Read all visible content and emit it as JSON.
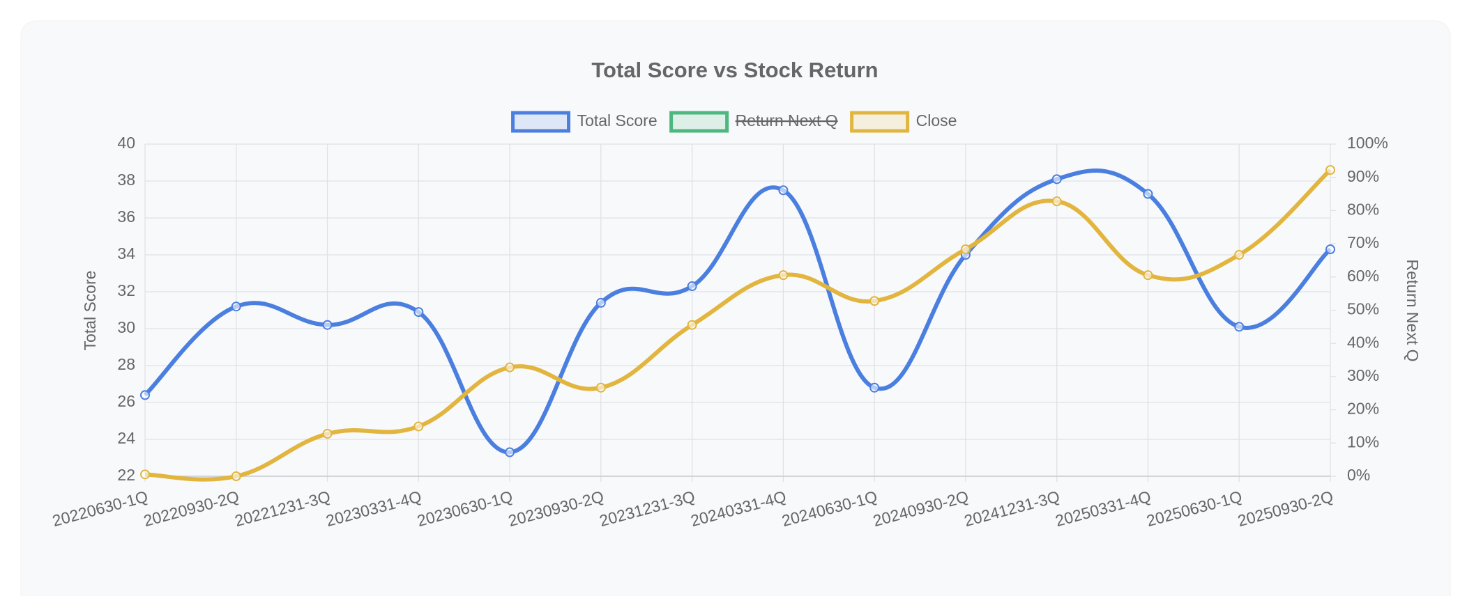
{
  "chart_data": {
    "type": "line",
    "title": "Total Score vs Stock Return",
    "categories": [
      "20220630-1Q",
      "20220930-2Q",
      "20221231-3Q",
      "20230331-4Q",
      "20230630-1Q",
      "20230930-2Q",
      "20231231-3Q",
      "20240331-4Q",
      "20240630-1Q",
      "20240930-2Q",
      "20241231-3Q",
      "20250331-4Q",
      "20250630-1Q",
      "20250930-2Q"
    ],
    "series": [
      {
        "name": "Total Score",
        "color": "#4a7fe0",
        "values": [
          26.4,
          31.2,
          30.2,
          30.9,
          23.3,
          31.4,
          32.3,
          37.5,
          26.8,
          34.0,
          38.1,
          37.3,
          30.1,
          34.3
        ]
      },
      {
        "name": "Return Next Q",
        "color": "#4cb87f",
        "hidden": true,
        "axis": "y2"
      },
      {
        "name": "Close",
        "color": "#e2b53f",
        "values": [
          22.1,
          22.0,
          24.3,
          24.7,
          27.9,
          26.8,
          30.2,
          32.9,
          31.5,
          34.3,
          36.9,
          32.9,
          34.0,
          38.6
        ]
      }
    ],
    "ylabel": "Total Score",
    "y2label": "Return Next Q",
    "ylim": [
      22,
      40
    ],
    "yticks": [
      22,
      24,
      26,
      28,
      30,
      32,
      34,
      36,
      38,
      40
    ],
    "y2lim": [
      0,
      100
    ],
    "y2ticks": [
      {
        "value": 0,
        "label": "0%"
      },
      {
        "value": 10,
        "label": "10%"
      },
      {
        "value": 20,
        "label": "20%"
      },
      {
        "value": 30,
        "label": "30%"
      },
      {
        "value": 40,
        "label": "40%"
      },
      {
        "value": 50,
        "label": "50%"
      },
      {
        "value": 60,
        "label": "60%"
      },
      {
        "value": 70,
        "label": "70%"
      },
      {
        "value": 80,
        "label": "80%"
      },
      {
        "value": 90,
        "label": "90%"
      },
      {
        "value": 100,
        "label": "100%"
      }
    ],
    "grid": true
  }
}
